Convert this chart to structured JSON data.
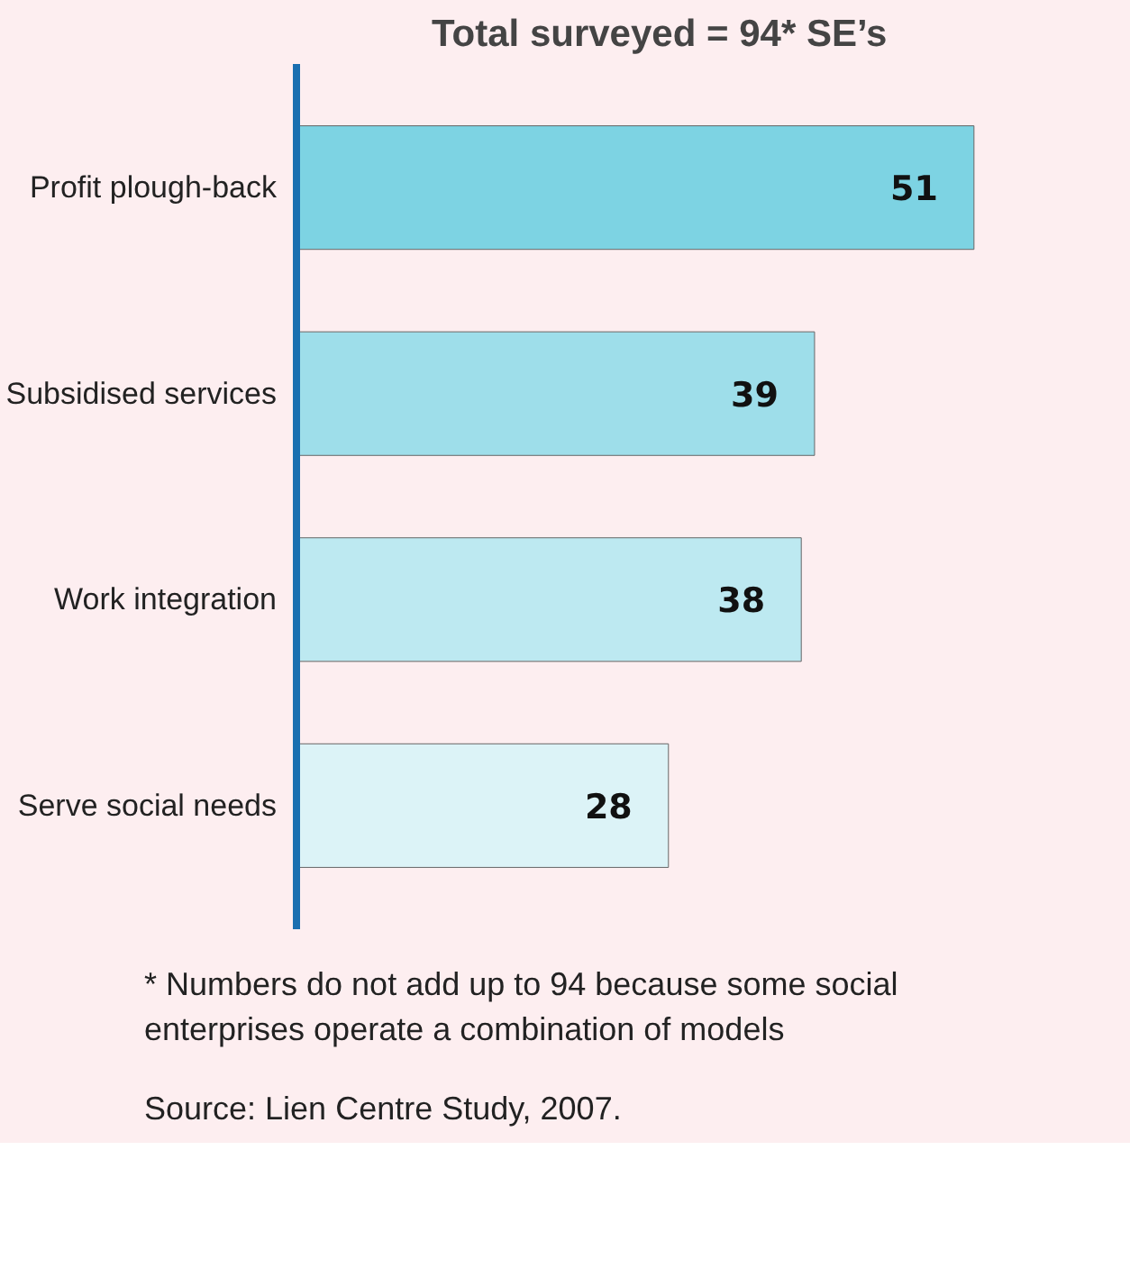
{
  "chart_data": {
    "type": "bar",
    "orientation": "horizontal",
    "title": "Total surveyed = 94* SE’s",
    "categories": [
      "Profit plough-back",
      "Subsidised services",
      "Work integration",
      "Serve social needs"
    ],
    "values": [
      51,
      39,
      38,
      28
    ],
    "colors": [
      "#7dd3e3",
      "#9edeea",
      "#bde9f1",
      "#dcf3f7"
    ],
    "data_labels": true,
    "annotations": [
      "* Numbers do not add up to 94 because some social enterprises operate a combination of models",
      "Source: Lien Centre Study, 2007."
    ]
  }
}
